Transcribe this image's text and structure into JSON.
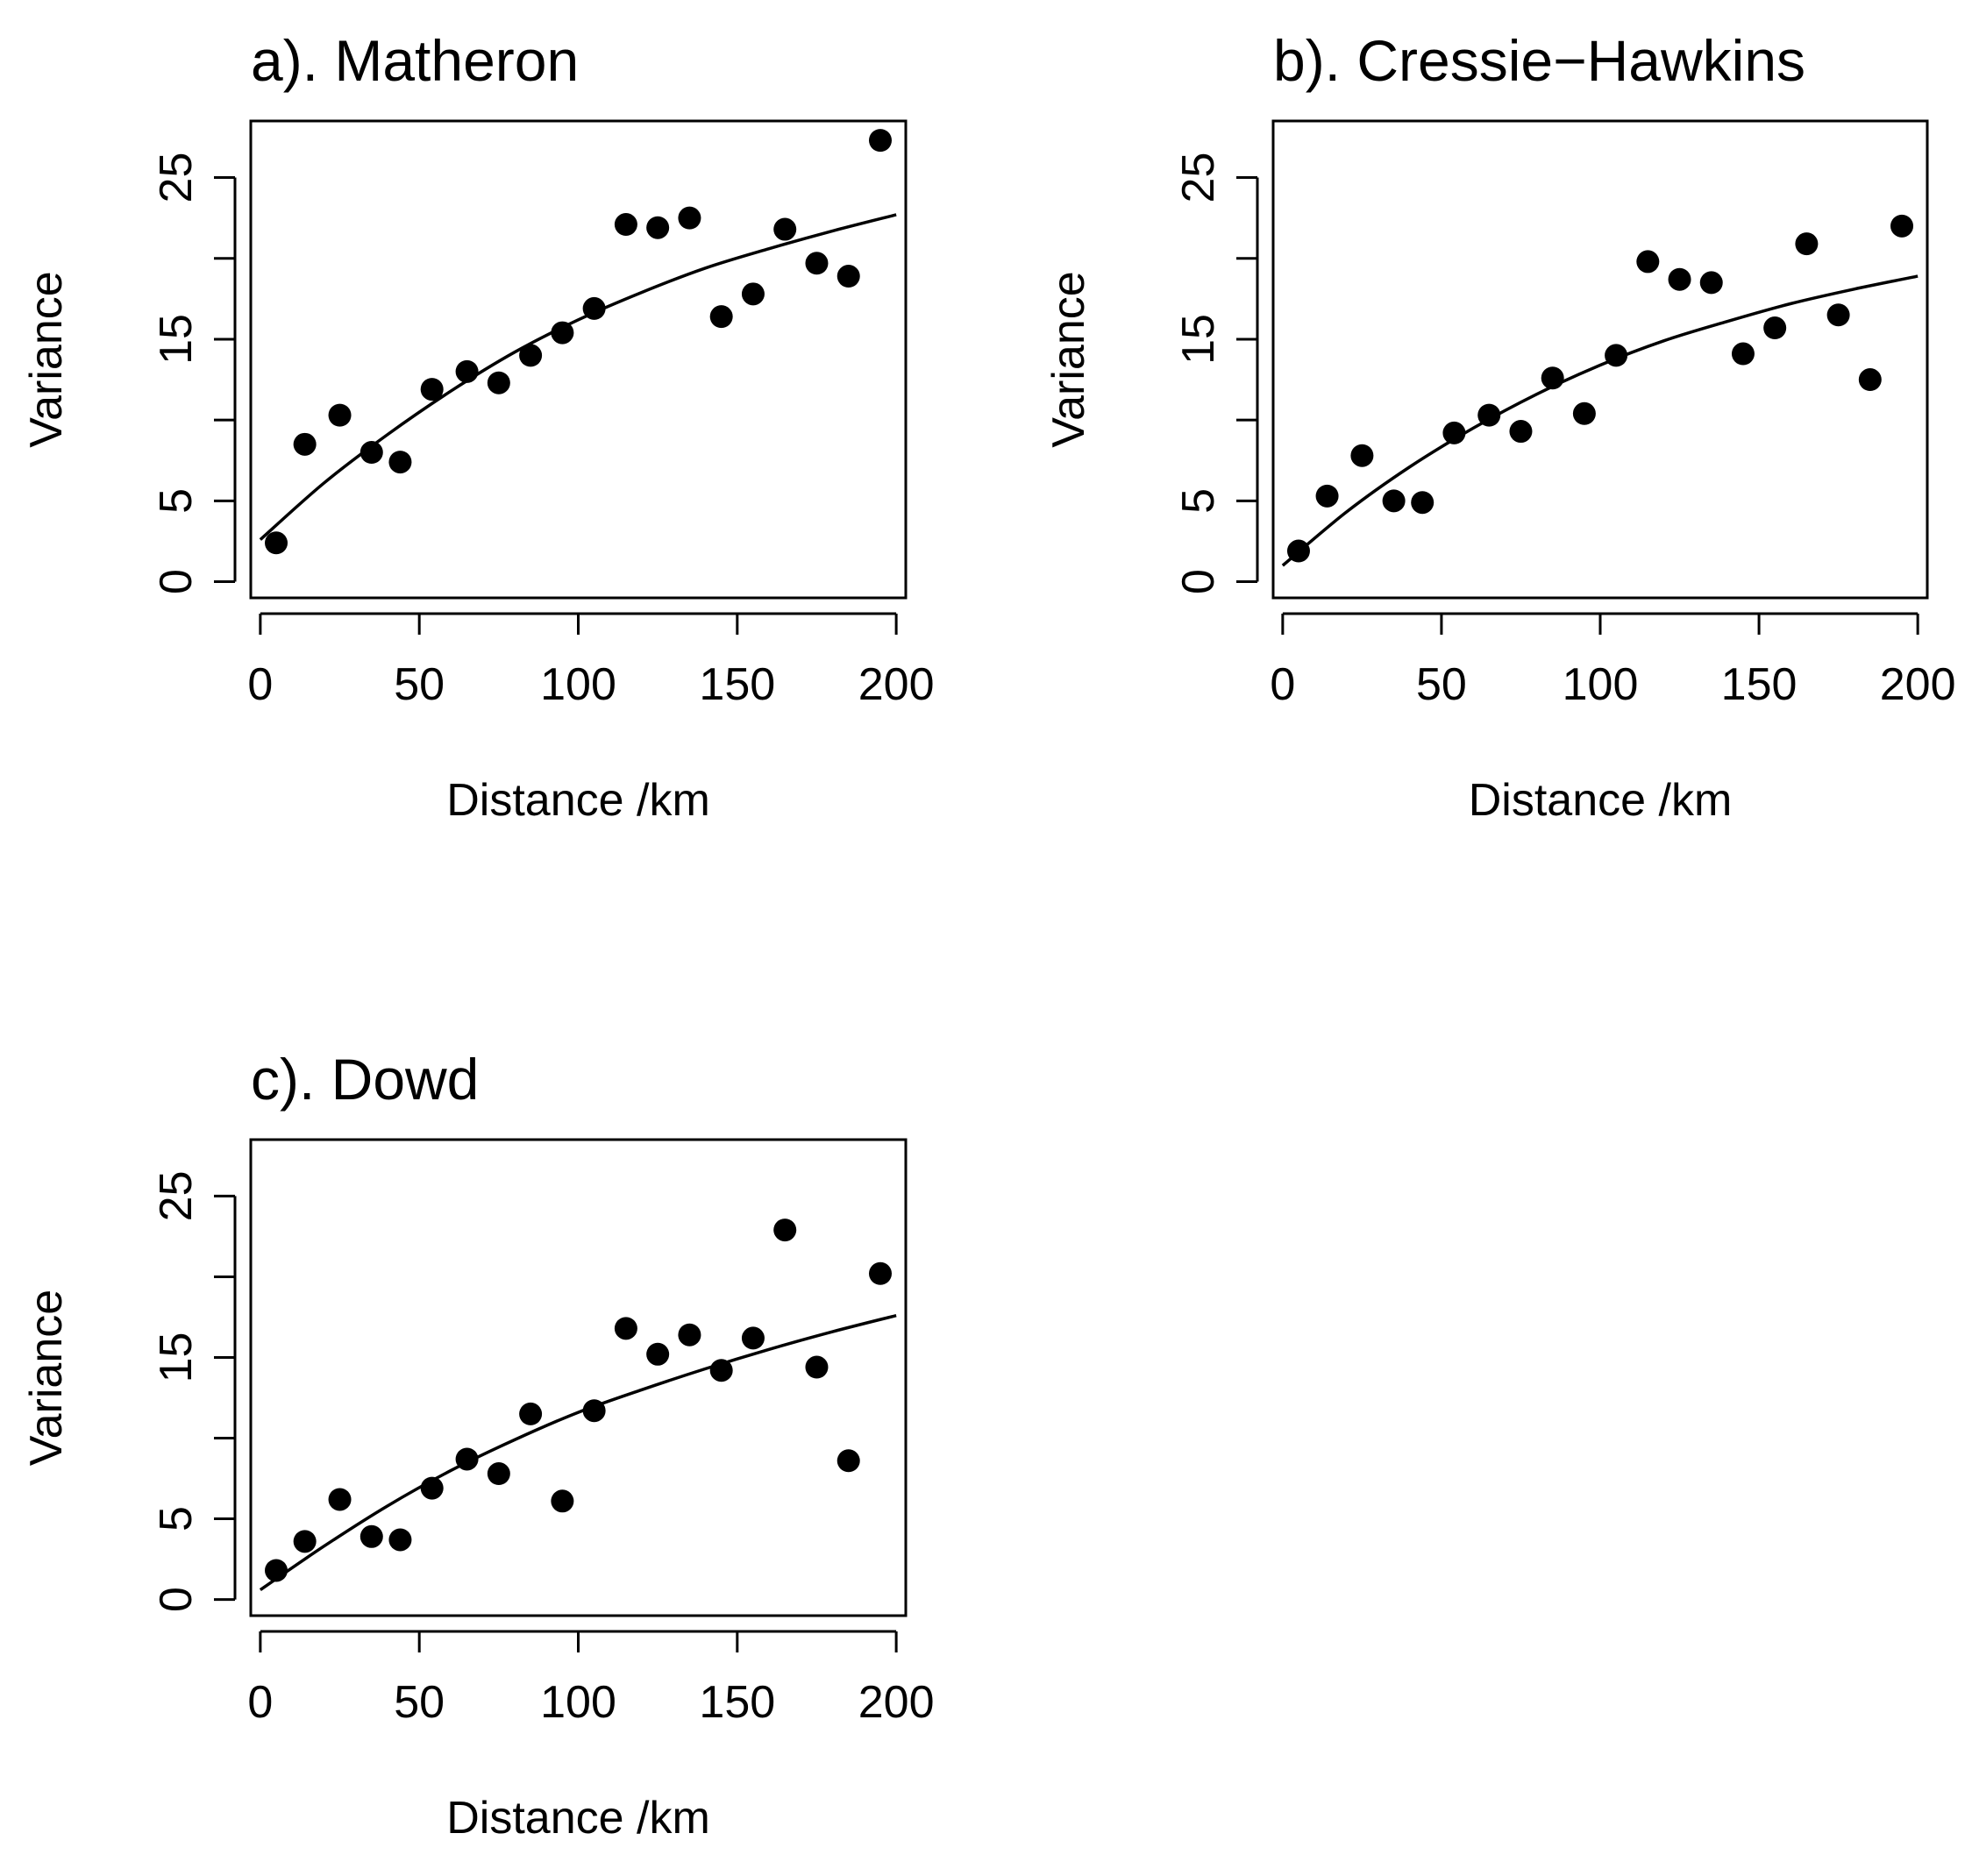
{
  "chart_data": [
    {
      "type": "scatter",
      "title": "a). Matheron",
      "xlabel": "Distance /km",
      "ylabel": "Variance",
      "xlim": [
        -3,
        203
      ],
      "ylim": [
        -1,
        28.5
      ],
      "xticks": [
        0,
        50,
        100,
        150,
        200
      ],
      "xtick_labels": [
        "0",
        "50",
        "100",
        "150",
        "200"
      ],
      "yticks": [
        0,
        5,
        10,
        15,
        20,
        25
      ],
      "ytick_labels": [
        "0",
        "5",
        "",
        "15",
        "",
        "25"
      ],
      "points": {
        "x": [
          5,
          14,
          25,
          35,
          44,
          54,
          65,
          75,
          85,
          95,
          105,
          115,
          125,
          135,
          145,
          155,
          165,
          175,
          185,
          195
        ],
        "y": [
          2.4,
          8.5,
          10.3,
          8.0,
          7.4,
          11.9,
          13.0,
          12.3,
          14.0,
          15.4,
          16.9,
          22.1,
          21.9,
          22.5,
          16.4,
          17.8,
          21.8,
          19.7,
          18.9,
          27.3
        ]
      },
      "fit_curve": {
        "x": [
          0,
          20,
          40,
          60,
          80,
          100,
          120,
          140,
          160,
          180,
          200
        ],
        "y": [
          2.6,
          6.1,
          9.1,
          11.8,
          14.2,
          16.2,
          17.9,
          19.4,
          20.6,
          21.7,
          22.7
        ]
      }
    },
    {
      "type": "scatter",
      "title": "b). Cressie−Hawkins",
      "xlabel": "Distance /km",
      "ylabel": "Variance",
      "xlim": [
        -3,
        203
      ],
      "ylim": [
        -1,
        28.5
      ],
      "xticks": [
        0,
        50,
        100,
        150,
        200
      ],
      "xtick_labels": [
        "0",
        "50",
        "100",
        "150",
        "200"
      ],
      "yticks": [
        0,
        5,
        10,
        15,
        20,
        25
      ],
      "ytick_labels": [
        "0",
        "5",
        "",
        "15",
        "",
        "25"
      ],
      "points": {
        "x": [
          5,
          14,
          25,
          35,
          44,
          54,
          65,
          75,
          85,
          95,
          105,
          115,
          125,
          135,
          145,
          155,
          165,
          175,
          185,
          195
        ],
        "y": [
          1.9,
          5.3,
          7.8,
          5.0,
          4.9,
          9.2,
          10.3,
          9.3,
          12.6,
          10.4,
          14.0,
          19.8,
          18.7,
          18.5,
          14.1,
          15.7,
          20.9,
          16.5,
          12.5,
          22.0
        ]
      },
      "fit_curve": {
        "x": [
          0,
          20,
          40,
          60,
          80,
          100,
          120,
          140,
          160,
          180,
          200
        ],
        "y": [
          1.0,
          4.3,
          7.1,
          9.5,
          11.6,
          13.4,
          14.9,
          16.1,
          17.2,
          18.1,
          18.9
        ]
      }
    },
    {
      "type": "scatter",
      "title": "c). Dowd",
      "xlabel": "Distance /km",
      "ylabel": "Variance",
      "xlim": [
        -3,
        203
      ],
      "ylim": [
        -1,
        28.5
      ],
      "xticks": [
        0,
        50,
        100,
        150,
        200
      ],
      "xtick_labels": [
        "0",
        "50",
        "100",
        "150",
        "200"
      ],
      "yticks": [
        0,
        5,
        10,
        15,
        20,
        25
      ],
      "ytick_labels": [
        "0",
        "5",
        "",
        "15",
        "",
        "25"
      ],
      "points": {
        "x": [
          5,
          14,
          25,
          35,
          44,
          54,
          65,
          75,
          85,
          95,
          105,
          115,
          125,
          135,
          145,
          155,
          165,
          175,
          185,
          195
        ],
        "y": [
          1.8,
          3.6,
          6.2,
          3.9,
          3.7,
          6.9,
          8.7,
          7.8,
          11.5,
          6.1,
          11.7,
          16.8,
          15.2,
          16.4,
          14.2,
          16.2,
          22.9,
          14.4,
          8.6,
          20.2
        ]
      },
      "fit_curve": {
        "x": [
          0,
          20,
          40,
          60,
          80,
          100,
          120,
          140,
          160,
          180,
          200
        ],
        "y": [
          0.6,
          3.3,
          5.8,
          8.0,
          9.9,
          11.6,
          13.0,
          14.3,
          15.5,
          16.6,
          17.6
        ]
      }
    }
  ]
}
